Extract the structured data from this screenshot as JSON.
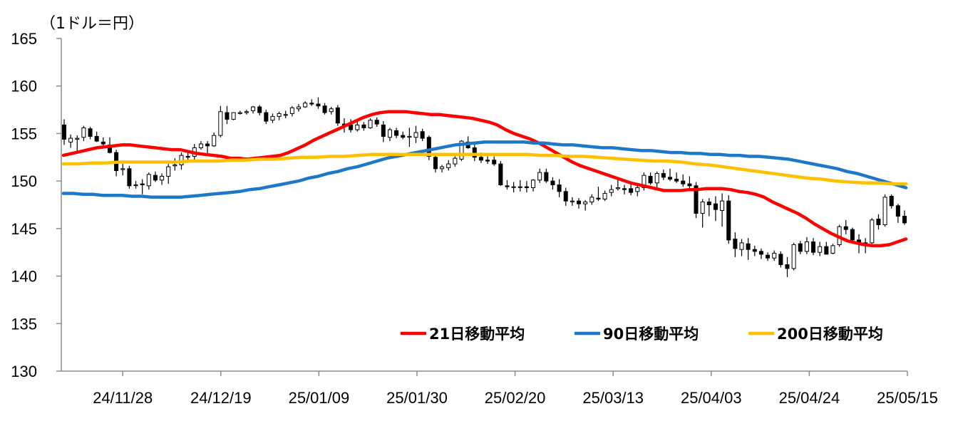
{
  "chart_data": {
    "type": "line",
    "title": "",
    "ylabel": "（1ドル＝円）",
    "ylim": [
      130,
      165
    ],
    "yticks": [
      130,
      135,
      140,
      145,
      150,
      155,
      160,
      165
    ],
    "xticks": [
      "24/11/28",
      "24/12/19",
      "25/01/09",
      "25/01/30",
      "25/02/20",
      "25/03/13",
      "25/04/03",
      "25/04/24",
      "25/05/15"
    ],
    "grid": false,
    "legend_position": "bottom-right",
    "colors": {
      "ma21": "#ff0000",
      "ma90": "#1f77c8",
      "ma200": "#ffc000",
      "candle": "#000000",
      "axis": "#8c8c8c"
    },
    "candle_series": {
      "name": "",
      "ohlc": [
        [
          155.9,
          156.5,
          153.8,
          154.4
        ],
        [
          154.1,
          154.9,
          153.5,
          154.5
        ],
        [
          154.4,
          154.8,
          153.0,
          154.5
        ],
        [
          154.6,
          155.8,
          154.2,
          155.6
        ],
        [
          155.5,
          155.7,
          154.4,
          154.7
        ],
        [
          154.7,
          155.2,
          154.1,
          154.2
        ],
        [
          154.1,
          154.6,
          153.5,
          153.9
        ],
        [
          153.8,
          154.6,
          152.9,
          153.0
        ],
        [
          153.0,
          153.3,
          150.5,
          151.1
        ],
        [
          151.2,
          151.8,
          150.6,
          151.3
        ],
        [
          151.3,
          151.6,
          149.2,
          149.5
        ],
        [
          149.6,
          150.0,
          149.2,
          149.6
        ],
        [
          149.7,
          150.2,
          148.6,
          149.6
        ],
        [
          149.5,
          150.9,
          149.1,
          150.7
        ],
        [
          150.6,
          151.0,
          149.9,
          150.1
        ],
        [
          150.1,
          150.8,
          149.6,
          150.5
        ],
        [
          150.5,
          151.8,
          149.7,
          151.5
        ],
        [
          151.6,
          152.4,
          151.1,
          151.7
        ],
        [
          151.7,
          153.0,
          151.2,
          152.7
        ],
        [
          152.6,
          153.1,
          152.1,
          152.5
        ],
        [
          152.6,
          153.9,
          152.1,
          153.5
        ],
        [
          153.5,
          154.2,
          153.3,
          153.9
        ],
        [
          153.9,
          154.2,
          152.9,
          153.7
        ],
        [
          153.7,
          155.1,
          153.6,
          154.8
        ],
        [
          154.8,
          157.9,
          154.6,
          157.3
        ],
        [
          157.2,
          157.9,
          156.0,
          156.5
        ],
        [
          156.5,
          157.2,
          156.4,
          157.2
        ],
        [
          157.1,
          157.4,
          157.0,
          157.2
        ],
        [
          157.2,
          157.5,
          157.0,
          157.3
        ],
        [
          157.4,
          157.9,
          157.1,
          157.8
        ],
        [
          157.8,
          158.0,
          156.9,
          157.2
        ],
        [
          157.2,
          157.5,
          156.0,
          156.3
        ],
        [
          156.4,
          157.1,
          156.1,
          156.8
        ],
        [
          156.8,
          157.3,
          156.4,
          157.1
        ],
        [
          157.0,
          157.4,
          156.6,
          157.0
        ],
        [
          157.1,
          157.9,
          156.8,
          157.7
        ],
        [
          157.6,
          158.1,
          157.3,
          157.8
        ],
        [
          157.8,
          158.4,
          157.7,
          158.2
        ],
        [
          158.2,
          158.6,
          157.9,
          158.1
        ],
        [
          158.1,
          158.8,
          157.6,
          157.9
        ],
        [
          157.9,
          158.2,
          157.0,
          157.2
        ],
        [
          157.3,
          157.8,
          157.0,
          157.6
        ],
        [
          157.7,
          158.0,
          155.8,
          156.1
        ],
        [
          156.0,
          156.6,
          155.1,
          155.9
        ],
        [
          155.9,
          156.5,
          155.1,
          155.4
        ],
        [
          155.4,
          156.3,
          155.2,
          155.9
        ],
        [
          155.9,
          156.2,
          155.3,
          155.6
        ],
        [
          155.6,
          156.6,
          155.5,
          156.4
        ],
        [
          156.4,
          156.7,
          155.7,
          156.0
        ],
        [
          155.9,
          156.3,
          154.1,
          154.7
        ],
        [
          154.6,
          155.6,
          154.2,
          155.4
        ],
        [
          155.3,
          155.6,
          154.5,
          154.8
        ],
        [
          154.8,
          155.2,
          154.4,
          154.6
        ],
        [
          154.7,
          155.6,
          153.6,
          154.7
        ],
        [
          154.6,
          155.8,
          154.0,
          155.1
        ],
        [
          155.2,
          155.5,
          154.2,
          154.5
        ],
        [
          154.6,
          154.8,
          152.2,
          152.6
        ],
        [
          152.5,
          152.9,
          150.9,
          151.3
        ],
        [
          151.3,
          151.7,
          150.9,
          151.5
        ],
        [
          151.4,
          152.2,
          151.1,
          151.8
        ],
        [
          151.8,
          152.6,
          151.5,
          152.4
        ],
        [
          152.3,
          154.3,
          152.1,
          154.2
        ],
        [
          154.1,
          154.7,
          153.4,
          153.5
        ],
        [
          153.5,
          153.9,
          152.1,
          152.5
        ],
        [
          152.5,
          153.0,
          151.9,
          152.2
        ],
        [
          152.2,
          152.6,
          151.8,
          152.1
        ],
        [
          152.2,
          152.6,
          151.6,
          151.8
        ],
        [
          151.8,
          152.1,
          149.5,
          149.6
        ],
        [
          149.5,
          150.1,
          149.1,
          149.4
        ],
        [
          149.4,
          149.9,
          148.8,
          149.4
        ],
        [
          149.4,
          150.1,
          148.9,
          149.4
        ],
        [
          149.4,
          150.0,
          148.8,
          149.3
        ],
        [
          149.3,
          150.2,
          148.9,
          150.1
        ],
        [
          150.1,
          151.3,
          149.8,
          150.9
        ],
        [
          150.9,
          151.3,
          149.8,
          150.0
        ],
        [
          150.0,
          150.4,
          149.1,
          149.6
        ],
        [
          149.6,
          150.2,
          148.3,
          148.9
        ],
        [
          148.9,
          149.3,
          147.4,
          147.9
        ],
        [
          147.9,
          148.3,
          147.4,
          147.9
        ],
        [
          147.9,
          148.2,
          147.1,
          147.6
        ],
        [
          147.6,
          148.0,
          146.9,
          147.8
        ],
        [
          147.8,
          148.6,
          147.5,
          148.3
        ],
        [
          148.2,
          149.4,
          147.9,
          148.1
        ],
        [
          148.1,
          149.0,
          147.9,
          148.7
        ],
        [
          148.8,
          149.6,
          148.4,
          149.1
        ],
        [
          149.2,
          150.1,
          149.0,
          149.3
        ],
        [
          149.2,
          149.6,
          148.6,
          149.1
        ],
        [
          149.2,
          149.8,
          148.5,
          148.8
        ],
        [
          148.9,
          149.6,
          148.4,
          149.3
        ],
        [
          149.3,
          150.9,
          149.0,
          150.6
        ],
        [
          150.5,
          150.9,
          149.6,
          149.8
        ],
        [
          149.8,
          151.0,
          149.3,
          150.8
        ],
        [
          150.8,
          151.2,
          150.1,
          150.4
        ],
        [
          150.4,
          151.3,
          150.0,
          150.2
        ],
        [
          150.2,
          150.9,
          149.8,
          150.0
        ],
        [
          150.0,
          150.7,
          149.4,
          149.7
        ],
        [
          149.7,
          150.5,
          149.2,
          149.5
        ],
        [
          149.5,
          149.9,
          146.1,
          146.6
        ],
        [
          146.6,
          148.1,
          145.1,
          147.8
        ],
        [
          147.8,
          148.2,
          146.3,
          147.5
        ],
        [
          147.6,
          148.4,
          145.8,
          147.0
        ],
        [
          146.9,
          148.7,
          145.2,
          147.9
        ],
        [
          147.9,
          148.5,
          143.4,
          143.8
        ],
        [
          143.9,
          144.6,
          142.0,
          142.9
        ],
        [
          142.8,
          143.9,
          142.1,
          143.5
        ],
        [
          143.4,
          144.0,
          141.7,
          142.8
        ],
        [
          142.8,
          143.2,
          142.1,
          142.6
        ],
        [
          142.6,
          142.9,
          141.8,
          142.3
        ],
        [
          142.2,
          142.5,
          141.6,
          141.9
        ],
        [
          141.9,
          142.7,
          141.6,
          142.4
        ],
        [
          142.3,
          142.6,
          140.9,
          141.2
        ],
        [
          141.2,
          142.0,
          139.9,
          140.8
        ],
        [
          140.8,
          143.5,
          140.6,
          143.3
        ],
        [
          143.4,
          143.7,
          142.3,
          142.6
        ],
        [
          142.6,
          144.1,
          142.3,
          143.6
        ],
        [
          143.6,
          144.0,
          142.2,
          142.5
        ],
        [
          142.5,
          143.6,
          142.1,
          143.1
        ],
        [
          143.1,
          143.6,
          142.4,
          142.3
        ],
        [
          142.4,
          143.4,
          142.3,
          143.2
        ],
        [
          143.3,
          145.4,
          143.1,
          145.2
        ],
        [
          145.2,
          145.9,
          144.4,
          144.9
        ],
        [
          144.9,
          145.1,
          143.5,
          143.8
        ],
        [
          143.8,
          144.4,
          142.4,
          143.5
        ],
        [
          143.5,
          144.0,
          142.4,
          143.3
        ],
        [
          143.5,
          146.1,
          143.4,
          145.9
        ],
        [
          146.0,
          146.5,
          144.9,
          145.4
        ],
        [
          145.4,
          148.6,
          145.2,
          148.3
        ],
        [
          148.4,
          148.6,
          147.1,
          147.4
        ],
        [
          147.4,
          147.6,
          145.6,
          146.3
        ],
        [
          146.3,
          146.9,
          145.4,
          145.6
        ]
      ]
    },
    "series": [
      {
        "name": "21日移動平均",
        "key": "ma21",
        "values": [
          152.7,
          152.9,
          153.1,
          153.3,
          153.5,
          153.6,
          153.7,
          153.8,
          153.8,
          153.7,
          153.6,
          153.5,
          153.4,
          153.3,
          153.3,
          153.1,
          152.9,
          152.8,
          152.7,
          152.6,
          152.4,
          152.4,
          152.3,
          152.4,
          152.5,
          152.6,
          152.7,
          153.0,
          153.4,
          153.8,
          154.3,
          154.7,
          155.1,
          155.5,
          155.9,
          156.3,
          156.7,
          157.0,
          157.2,
          157.3,
          157.3,
          157.3,
          157.2,
          157.1,
          157.0,
          157.0,
          156.9,
          156.8,
          156.7,
          156.6,
          156.4,
          156.2,
          155.9,
          155.4,
          155.0,
          154.7,
          154.4,
          154.0,
          153.5,
          153.0,
          152.5,
          152.0,
          151.6,
          151.3,
          151.0,
          150.7,
          150.4,
          150.1,
          149.8,
          149.6,
          149.4,
          149.2,
          149.0,
          149.0,
          149.0,
          149.1,
          149.1,
          149.2,
          149.2,
          149.2,
          149.1,
          148.9,
          148.8,
          148.6,
          148.3,
          147.8,
          147.4,
          147.0,
          146.6,
          146.1,
          145.5,
          145.0,
          144.5,
          144.1,
          143.7,
          143.5,
          143.3,
          143.2,
          143.2,
          143.3,
          143.6,
          143.9
        ]
      },
      {
        "name": "90日移動平均",
        "key": "ma90",
        "values": [
          148.7,
          148.7,
          148.6,
          148.6,
          148.5,
          148.5,
          148.5,
          148.4,
          148.4,
          148.3,
          148.3,
          148.3,
          148.3,
          148.4,
          148.5,
          148.6,
          148.7,
          148.8,
          148.9,
          149.1,
          149.2,
          149.4,
          149.6,
          149.8,
          150.0,
          150.3,
          150.5,
          150.8,
          151.0,
          151.3,
          151.5,
          151.8,
          152.1,
          152.4,
          152.6,
          152.8,
          153.0,
          153.2,
          153.4,
          153.6,
          153.8,
          153.9,
          154.0,
          154.1,
          154.1,
          154.1,
          154.1,
          154.1,
          154.0,
          154.0,
          153.9,
          153.8,
          153.8,
          153.7,
          153.6,
          153.5,
          153.5,
          153.4,
          153.3,
          153.2,
          153.2,
          153.1,
          153.0,
          153.0,
          152.9,
          152.9,
          152.8,
          152.8,
          152.7,
          152.7,
          152.6,
          152.6,
          152.5,
          152.4,
          152.3,
          152.1,
          151.9,
          151.7,
          151.5,
          151.3,
          151.0,
          150.8,
          150.5,
          150.2,
          149.9,
          149.6,
          149.3
        ]
      },
      {
        "name": "200日移動平均",
        "key": "ma200",
        "values": [
          151.8,
          151.8,
          151.9,
          151.9,
          152.0,
          152.0,
          152.0,
          152.0,
          152.0,
          152.1,
          152.1,
          152.1,
          152.2,
          152.2,
          152.3,
          152.3,
          152.4,
          152.5,
          152.5,
          152.6,
          152.6,
          152.7,
          152.8,
          152.8,
          152.8,
          152.8,
          152.8,
          152.8,
          152.8,
          152.8,
          152.8,
          152.8,
          152.8,
          152.8,
          152.7,
          152.7,
          152.6,
          152.6,
          152.5,
          152.4,
          152.3,
          152.2,
          152.1,
          152.1,
          152.0,
          151.8,
          151.7,
          151.5,
          151.3,
          151.1,
          150.9,
          150.7,
          150.5,
          150.3,
          150.2,
          150.0,
          149.9,
          149.8,
          149.8,
          149.7,
          149.7
        ]
      }
    ]
  }
}
